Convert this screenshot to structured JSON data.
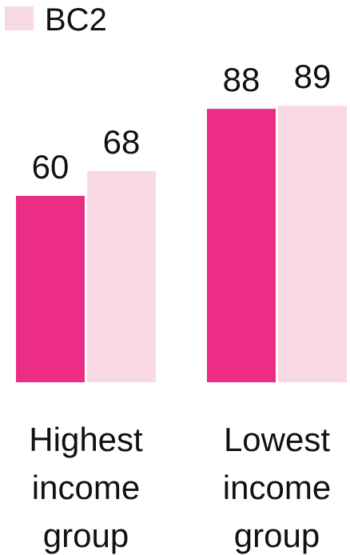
{
  "chart_data": {
    "type": "bar",
    "categories": [
      [
        "Highest",
        "income",
        "group"
      ],
      [
        "Lowest",
        "income",
        "group"
      ]
    ],
    "series": [
      {
        "name": "",
        "color": "#EC2D86",
        "values": [
          60,
          88
        ]
      },
      {
        "name": "BC2",
        "color": "#F8D9E4",
        "values": [
          68,
          89
        ]
      }
    ],
    "ylim": [
      0,
      100
    ],
    "grid": false,
    "legend": "top-left",
    "xlabel": "",
    "ylabel": "",
    "title": ""
  }
}
